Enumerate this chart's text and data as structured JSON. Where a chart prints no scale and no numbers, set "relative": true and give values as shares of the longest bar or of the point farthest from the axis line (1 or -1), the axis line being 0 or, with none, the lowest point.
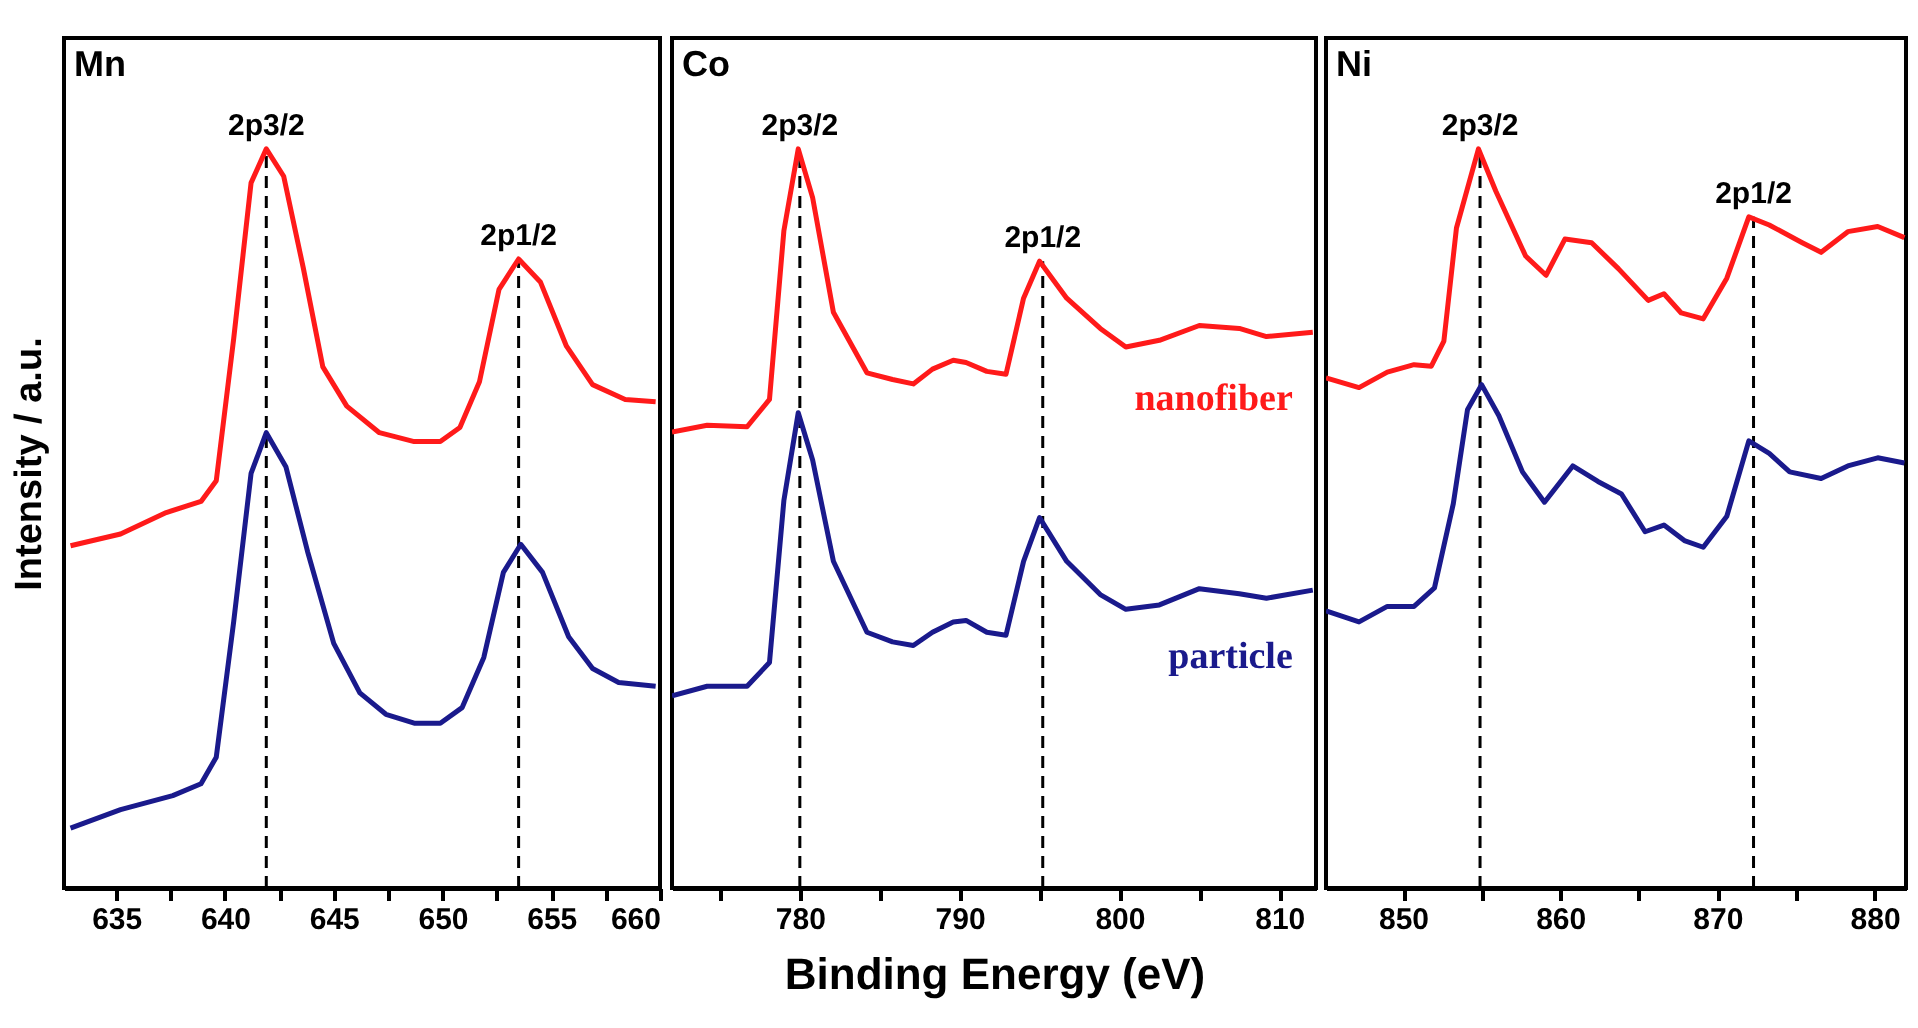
{
  "chart_data": [
    {
      "type": "line",
      "title": "Mn",
      "ylabel": "Intensity / a.u.",
      "relative": true,
      "xlim": [
        632.6,
        660
      ],
      "xticks": [
        635,
        {
          "value": 637.5,
          "label": null
        },
        640,
        {
          "value": 642.5,
          "label": null
        },
        645,
        {
          "value": 647.5,
          "label": null
        },
        650,
        {
          "value": 652.5,
          "label": null
        },
        655,
        {
          "value": 657.5,
          "label": null
        },
        660
      ],
      "series": [
        {
          "color": "#ff1a1a",
          "x": [
            632.9,
            635.2,
            637.3,
            638.9,
            639.6,
            640.4,
            641.2,
            641.9,
            642.7,
            643.6,
            644.5,
            645.6,
            647.1,
            648.7,
            649.9,
            650.8,
            651.7,
            652.6,
            653.5,
            654.5,
            655.7,
            656.9,
            658.4,
            659.8
          ],
          "values": [
            0.463,
            0.479,
            0.508,
            0.523,
            0.551,
            0.743,
            0.954,
            1.0,
            0.963,
            0.839,
            0.705,
            0.652,
            0.616,
            0.604,
            0.604,
            0.623,
            0.685,
            0.81,
            0.851,
            0.82,
            0.733,
            0.681,
            0.661,
            0.658
          ]
        },
        {
          "color": "#1a1a8c",
          "x": [
            632.9,
            635.2,
            637.6,
            638.9,
            639.6,
            640.4,
            641.2,
            641.9,
            642.8,
            643.8,
            645.0,
            646.2,
            647.4,
            648.7,
            649.9,
            650.9,
            651.9,
            652.8,
            653.6,
            654.6,
            655.8,
            656.9,
            658.1,
            659.8
          ],
          "values": [
            0.081,
            0.106,
            0.125,
            0.141,
            0.177,
            0.36,
            0.561,
            0.616,
            0.57,
            0.455,
            0.331,
            0.264,
            0.235,
            0.223,
            0.223,
            0.244,
            0.312,
            0.427,
            0.465,
            0.427,
            0.34,
            0.297,
            0.278,
            0.273
          ]
        }
      ],
      "ref_lines": [
        {
          "axis": "x",
          "value": 641.9,
          "line_style": "dashed",
          "color": "#000000"
        },
        {
          "axis": "x",
          "value": 653.5,
          "line_style": "dashed",
          "color": "#000000"
        }
      ],
      "annotations": [
        {
          "text": "2p3/2",
          "x": 641.9,
          "y": 1.0
        },
        {
          "text": "2p1/2",
          "x": 653.5,
          "y": 0.851
        }
      ]
    },
    {
      "type": "line",
      "title": "Co",
      "xlabel": "Binding Energy (eV)",
      "relative": true,
      "xlim": [
        772,
        812.3
      ],
      "xticks": [
        {
          "value": 775,
          "label": null
        },
        780,
        {
          "value": 785,
          "label": null
        },
        790,
        {
          "value": 795,
          "label": null
        },
        800,
        {
          "value": 805,
          "label": null
        },
        810
      ],
      "series": [
        {
          "name": "nanofiber",
          "color": "#ff1a1a",
          "x": [
            772,
            774.2,
            776.7,
            778.1,
            779.0,
            779.9,
            780.8,
            782.1,
            784.2,
            785.8,
            787.1,
            788.3,
            789.6,
            790.4,
            791.7,
            792.9,
            794.0,
            795.0,
            796.7,
            798.8,
            800.4,
            802.5,
            805.0,
            807.5,
            809.2,
            812.1
          ],
          "values": [
            0.617,
            0.626,
            0.624,
            0.661,
            0.889,
            1.0,
            0.934,
            0.779,
            0.697,
            0.688,
            0.682,
            0.702,
            0.714,
            0.711,
            0.699,
            0.695,
            0.798,
            0.848,
            0.798,
            0.757,
            0.732,
            0.741,
            0.761,
            0.757,
            0.746,
            0.752
          ]
        },
        {
          "name": "particle",
          "color": "#1a1a8c",
          "x": [
            772,
            774.2,
            776.7,
            778.1,
            779.0,
            779.9,
            780.8,
            782.1,
            784.2,
            785.8,
            787.1,
            788.3,
            789.6,
            790.4,
            791.7,
            792.9,
            794.0,
            795.0,
            796.7,
            798.8,
            800.4,
            802.5,
            805.0,
            807.5,
            809.2,
            812.1
          ],
          "values": [
            0.26,
            0.273,
            0.273,
            0.305,
            0.524,
            0.643,
            0.579,
            0.442,
            0.346,
            0.333,
            0.328,
            0.346,
            0.36,
            0.362,
            0.346,
            0.342,
            0.442,
            0.501,
            0.442,
            0.397,
            0.377,
            0.383,
            0.405,
            0.398,
            0.392,
            0.403
          ]
        }
      ],
      "ref_lines": [
        {
          "axis": "x",
          "value": 780.0,
          "line_style": "dashed",
          "color": "#000000"
        },
        {
          "axis": "x",
          "value": 795.2,
          "line_style": "dashed",
          "color": "#000000"
        }
      ],
      "annotations": [
        {
          "text": "2p3/2",
          "x": 780.0,
          "y": 1.0
        },
        {
          "text": "2p1/2",
          "x": 795.2,
          "y": 0.848
        }
      ]
    },
    {
      "type": "line",
      "title": "Ni",
      "relative": true,
      "xlim": [
        845.1,
        882
      ],
      "xticks": [
        850,
        {
          "value": 855,
          "label": null
        },
        860,
        {
          "value": 865,
          "label": null
        },
        870,
        {
          "value": 875,
          "label": null
        },
        880
      ],
      "series": [
        {
          "color": "#ff1a1a",
          "x": [
            845.1,
            847.2,
            849.0,
            850.7,
            851.8,
            852.6,
            853.4,
            854.8,
            855.9,
            857.8,
            859.1,
            860.3,
            862.0,
            863.7,
            865.6,
            866.6,
            867.7,
            869.1,
            870.6,
            872.0,
            873.3,
            875.4,
            876.6,
            878.3,
            880.2,
            881.9
          ],
          "values": [
            0.69,
            0.677,
            0.698,
            0.708,
            0.706,
            0.74,
            0.893,
            1.0,
            0.943,
            0.855,
            0.829,
            0.878,
            0.873,
            0.838,
            0.795,
            0.804,
            0.778,
            0.77,
            0.825,
            0.908,
            0.897,
            0.873,
            0.86,
            0.888,
            0.895,
            0.88
          ]
        },
        {
          "color": "#1a1a8c",
          "x": [
            845.1,
            847.2,
            849.0,
            850.7,
            852.0,
            853.2,
            854.1,
            855.0,
            856.1,
            857.6,
            859.0,
            860.8,
            862.4,
            863.9,
            865.4,
            866.6,
            867.9,
            869.1,
            870.6,
            872.0,
            873.3,
            874.6,
            876.6,
            878.3,
            880.2,
            881.9
          ],
          "values": [
            0.375,
            0.36,
            0.381,
            0.381,
            0.406,
            0.52,
            0.647,
            0.681,
            0.639,
            0.563,
            0.522,
            0.571,
            0.55,
            0.533,
            0.482,
            0.491,
            0.47,
            0.461,
            0.503,
            0.605,
            0.588,
            0.563,
            0.554,
            0.571,
            0.582,
            0.575
          ]
        }
      ],
      "ref_lines": [
        {
          "axis": "x",
          "value": 854.9,
          "line_style": "dashed",
          "color": "#000000"
        },
        {
          "axis": "x",
          "value": 872.3,
          "line_style": "dashed",
          "color": "#000000"
        }
      ],
      "annotations": [
        {
          "text": "2p3/2",
          "x": 854.9,
          "y": 1.0
        },
        {
          "text": "2p1/2",
          "x": 872.3,
          "y": 0.908
        }
      ]
    }
  ]
}
